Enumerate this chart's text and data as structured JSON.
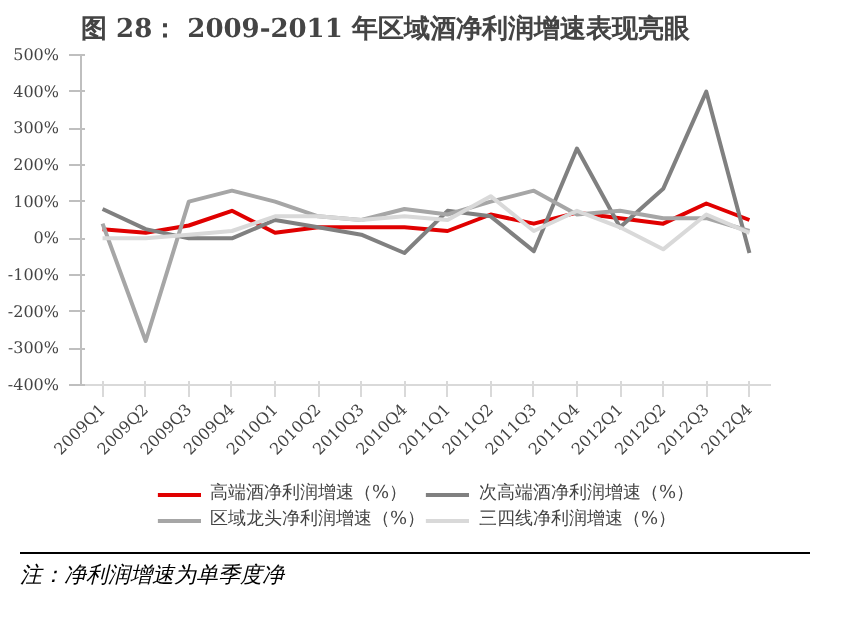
{
  "chart_data": {
    "type": "line",
    "title": "图 28： 2009-2011 年区域酒净利润增速表现亮眼",
    "categories": [
      "2009Q1",
      "2009Q2",
      "2009Q3",
      "2009Q4",
      "2010Q1",
      "2010Q2",
      "2010Q3",
      "2010Q4",
      "2011Q1",
      "2011Q2",
      "2011Q3",
      "2011Q4",
      "2012Q1",
      "2012Q2",
      "2012Q3",
      "2012Q4"
    ],
    "series": [
      {
        "name": "高端酒净利润增速（%）",
        "color": "#e00000",
        "values": [
          25,
          15,
          35,
          75,
          15,
          30,
          30,
          30,
          20,
          65,
          40,
          70,
          55,
          40,
          95,
          50
        ]
      },
      {
        "name": "次高端酒净利润增速（%）",
        "color": "#808080",
        "values": [
          80,
          25,
          0,
          0,
          50,
          30,
          10,
          -40,
          75,
          60,
          -35,
          245,
          30,
          135,
          400,
          -40
        ]
      },
      {
        "name": "区域龙头净利润增速（%）",
        "color": "#a6a6a6",
        "values": [
          40,
          -280,
          100,
          130,
          100,
          60,
          50,
          80,
          65,
          100,
          130,
          65,
          75,
          55,
          55,
          20
        ]
      },
      {
        "name": "三四线净利润增速（%）",
        "color": "#d9d9d9",
        "values": [
          0,
          0,
          10,
          20,
          60,
          60,
          50,
          60,
          50,
          115,
          20,
          75,
          30,
          -30,
          65,
          15
        ]
      }
    ],
    "ylim": [
      -400,
      500
    ],
    "yticks": [
      {
        "value": -400,
        "label": "-400%"
      },
      {
        "value": -300,
        "label": "-300%"
      },
      {
        "value": -200,
        "label": "-200%"
      },
      {
        "value": -100,
        "label": "-100%"
      },
      {
        "value": 0,
        "label": "0%"
      },
      {
        "value": 100,
        "label": "100%"
      },
      {
        "value": 200,
        "label": "200%"
      },
      {
        "value": 300,
        "label": "300%"
      },
      {
        "value": 400,
        "label": "400%"
      },
      {
        "value": 500,
        "label": "500%"
      }
    ],
    "grid": false,
    "legend": "bottom",
    "marker": "none",
    "line_style": "solid",
    "annotations": [
      "注：净利润增速为单季度净"
    ]
  }
}
